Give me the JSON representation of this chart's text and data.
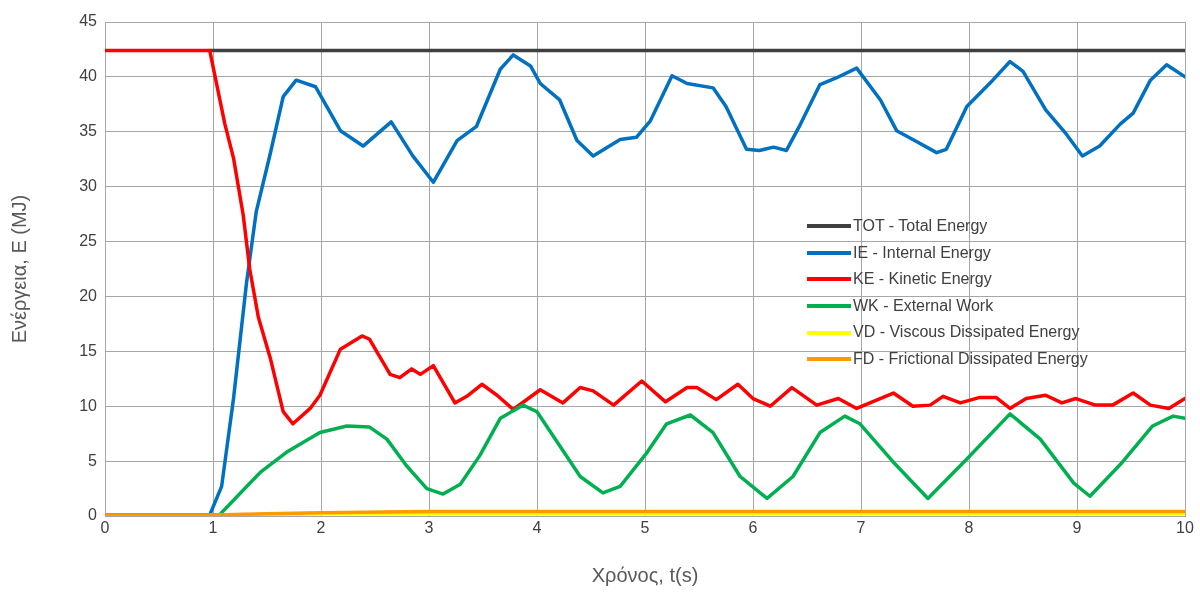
{
  "chart_data": {
    "type": "line",
    "xlabel": "Χρόνος, t(s)",
    "ylabel": "Ενέργεια, E (MJ)",
    "xlim": [
      0,
      10
    ],
    "xticks": [
      0,
      1,
      2,
      3,
      4,
      5,
      6,
      7,
      8,
      9,
      10
    ],
    "ylim": [
      0,
      45
    ],
    "yticks": [
      0,
      5,
      10,
      15,
      20,
      25,
      30,
      35,
      40,
      45
    ],
    "grid": true,
    "legend": "right",
    "marker": "none",
    "line_style": "solid",
    "series": [
      {
        "name": "TOT - Total Energy",
        "color": "#404040",
        "x": [
          0.97,
          10
        ],
        "values": [
          42.4,
          42.4
        ]
      },
      {
        "name": "IE - Internal Energy",
        "color": "#0070c0",
        "x": [
          0,
          0.97,
          1.08,
          1.19,
          1.31,
          1.4,
          1.53,
          1.65,
          1.77,
          1.95,
          2.18,
          2.39,
          2.65,
          2.85,
          3.04,
          3.26,
          3.44,
          3.66,
          3.78,
          3.94,
          4.03,
          4.21,
          4.37,
          4.52,
          4.77,
          4.92,
          5.05,
          5.25,
          5.39,
          5.63,
          5.75,
          5.94,
          6.06,
          6.19,
          6.31,
          6.44,
          6.62,
          6.77,
          6.96,
          7.18,
          7.33,
          7.48,
          7.7,
          7.79,
          7.98,
          8.22,
          8.38,
          8.5,
          8.71,
          8.9,
          9.05,
          9.21,
          9.4,
          9.52,
          9.68,
          9.83,
          10
        ],
        "values": [
          0.1,
          0.1,
          2.7,
          10.7,
          21.2,
          27.7,
          33,
          38.2,
          39.7,
          39.1,
          35.1,
          33.7,
          35.9,
          32.8,
          30.4,
          34.2,
          35.5,
          40.7,
          42,
          41,
          39.4,
          37.9,
          34.2,
          32.8,
          34.3,
          34.5,
          36,
          40.1,
          39.4,
          39,
          37.3,
          33.4,
          33.3,
          33.6,
          33.3,
          35.7,
          39.3,
          39.9,
          40.8,
          37.9,
          35.1,
          34.3,
          33.1,
          33.4,
          37.3,
          39.7,
          41.4,
          40.5,
          37,
          34.8,
          32.8,
          33.7,
          35.7,
          36.7,
          39.7,
          41.1,
          40
        ]
      },
      {
        "name": "KE - Kinetic Energy",
        "color": "#ff0000",
        "x": [
          0,
          0.97,
          1.02,
          1.11,
          1.19,
          1.28,
          1.34,
          1.42,
          1.53,
          1.65,
          1.74,
          1.9,
          1.99,
          2.18,
          2.38,
          2.45,
          2.64,
          2.73,
          2.84,
          2.92,
          3.04,
          3.24,
          3.35,
          3.49,
          3.63,
          3.78,
          4.03,
          4.24,
          4.4,
          4.52,
          4.71,
          4.97,
          5.19,
          5.39,
          5.48,
          5.66,
          5.86,
          6,
          6.16,
          6.36,
          6.59,
          6.79,
          6.96,
          7.3,
          7.48,
          7.64,
          7.76,
          7.92,
          8.1,
          8.25,
          8.38,
          8.53,
          8.71,
          8.86,
          8.99,
          9.17,
          9.33,
          9.52,
          9.68,
          9.85,
          10
        ],
        "values": [
          42.4,
          42.4,
          40,
          35.7,
          32.6,
          27.4,
          22.5,
          18.1,
          14.4,
          9.5,
          8.4,
          9.8,
          11,
          15.2,
          16.4,
          16.1,
          12.9,
          12.6,
          13.4,
          12.9,
          13.7,
          10.3,
          10.9,
          12,
          11,
          9.7,
          11.5,
          10.3,
          11.7,
          11.4,
          10.1,
          12.3,
          10.4,
          11.7,
          11.7,
          10.6,
          12,
          10.7,
          10,
          11.7,
          10.1,
          10.7,
          9.8,
          11.2,
          10,
          10.1,
          10.9,
          10.3,
          10.8,
          10.8,
          9.8,
          10.7,
          11,
          10.3,
          10.7,
          10.1,
          10.1,
          11.2,
          10.1,
          9.8,
          10.7
        ]
      },
      {
        "name": "WK - External Work",
        "color": "#00b050",
        "x": [
          0,
          1.06,
          1.44,
          1.68,
          1.99,
          2.24,
          2.45,
          2.61,
          2.79,
          2.98,
          3.13,
          3.29,
          3.47,
          3.66,
          3.87,
          4,
          4.21,
          4.4,
          4.61,
          4.77,
          5.02,
          5.2,
          5.42,
          5.63,
          5.88,
          6.13,
          6.37,
          6.62,
          6.85,
          6.99,
          7.3,
          7.62,
          7.98,
          8.38,
          8.66,
          8.97,
          9.12,
          9.42,
          9.7,
          9.89,
          10
        ],
        "values": [
          0.1,
          0.1,
          4,
          5.8,
          7.6,
          8.2,
          8.1,
          7,
          4.6,
          2.5,
          2,
          2.9,
          5.5,
          8.9,
          10.1,
          9.5,
          6.4,
          3.6,
          2.1,
          2.7,
          5.8,
          8.4,
          9.2,
          7.6,
          3.6,
          1.6,
          3.6,
          7.6,
          9.1,
          8.4,
          4.9,
          1.6,
          5.2,
          9.3,
          7,
          3,
          1.8,
          4.9,
          8.2,
          9.1,
          8.9
        ]
      },
      {
        "name": "VD - Viscous Dissipated Energy",
        "color": "#ffff00",
        "x": [
          0,
          1,
          2,
          10
        ],
        "values": [
          0,
          0,
          0.2,
          0.2
        ]
      },
      {
        "name": "FD - Frictional Dissipated Energy",
        "color": "#ff9900",
        "x": [
          0,
          1,
          1.5,
          2,
          3,
          10
        ],
        "values": [
          0.1,
          0.1,
          0.2,
          0.3,
          0.4,
          0.4
        ]
      }
    ]
  }
}
